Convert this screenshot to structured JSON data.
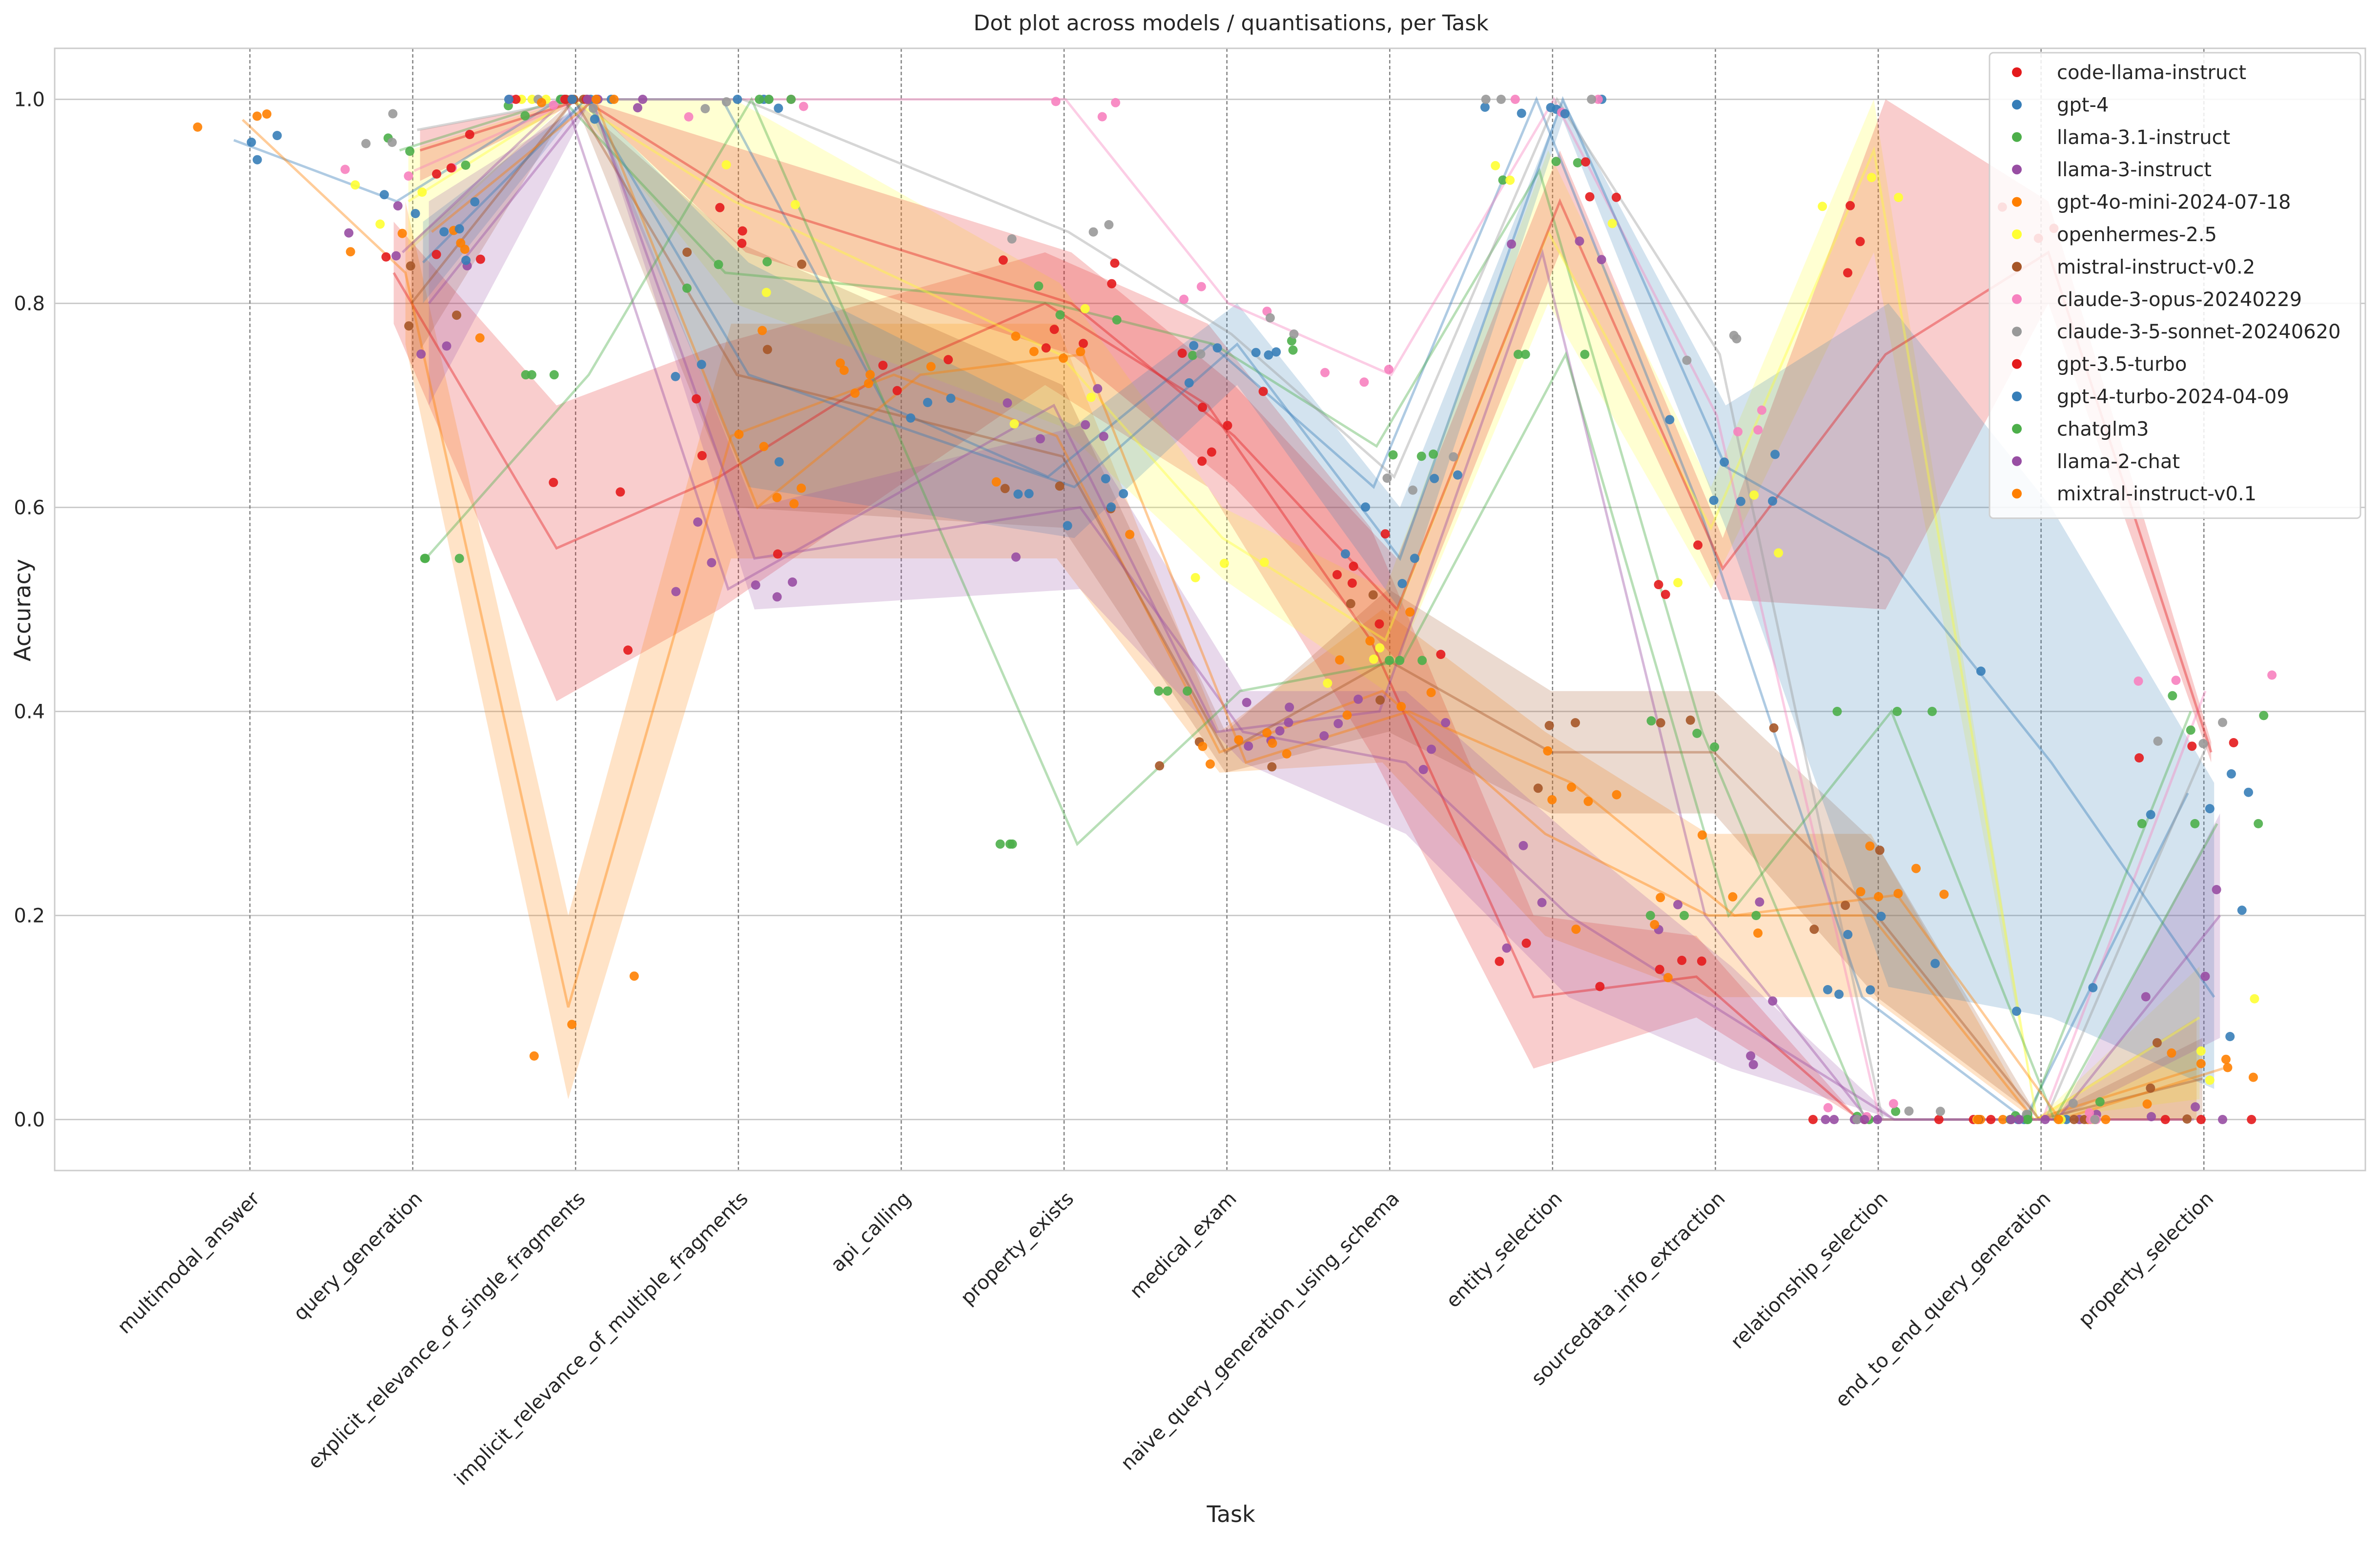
{
  "chart_data": {
    "type": "scatter",
    "title": "Dot plot across models / quantisations, per Task",
    "xlabel": "Task",
    "ylabel": "Accuracy",
    "ylim": [
      -0.05,
      1.05
    ],
    "yticks": [
      "0.0",
      "0.2",
      "0.4",
      "0.6",
      "0.8",
      "1.0"
    ],
    "grid": "y",
    "legend_position": "top-right",
    "categories": [
      "multimodal_answer",
      "query_generation",
      "explicit_relevance_of_single_fragments",
      "implicit_relevance_of_multiple_fragments",
      "api_calling",
      "property_exists",
      "medical_exam",
      "naive_query_generation_using_schema",
      "entity_selection",
      "sourcedata_info_extraction",
      "relationship_selection",
      "end_to_end_query_generation",
      "property_selection"
    ],
    "series": [
      {
        "name": "code-llama-instruct",
        "color": "#e41a1c",
        "mean": [
          null,
          0.83,
          0.56,
          0.63,
          0.73,
          0.8,
          0.7,
          0.47,
          0.12,
          0.14,
          0.0,
          0.0,
          0.0
        ],
        "lo": [
          null,
          0.78,
          0.41,
          0.5,
          null,
          0.72,
          0.62,
          0.36,
          0.05,
          0.1,
          0.0,
          0.0,
          0.0
        ],
        "hi": [
          null,
          0.88,
          0.7,
          0.76,
          null,
          0.85,
          0.78,
          0.58,
          0.2,
          0.18,
          0.0,
          0.0,
          0.0
        ]
      },
      {
        "name": "gpt-4",
        "color": "#377eb8",
        "mean": [
          0.96,
          0.9,
          1.0,
          1.0,
          0.7,
          0.63,
          0.76,
          0.62,
          1.0,
          0.6,
          0.12,
          0.0,
          0.32
        ],
        "lo": null,
        "hi": null
      },
      {
        "name": "llama-3.1-instruct",
        "color": "#4daf4a",
        "mean": [
          null,
          0.95,
          1.0,
          0.83,
          null,
          0.8,
          0.76,
          0.66,
          0.93,
          0.38,
          0.0,
          0.0,
          0.4
        ],
        "lo": null,
        "hi": null
      },
      {
        "name": "llama-3-instruct",
        "color": "#984ea3",
        "mean": [
          null,
          0.85,
          1.0,
          0.52,
          null,
          0.7,
          0.38,
          0.4,
          0.85,
          0.2,
          0.0,
          0.0,
          0.0
        ],
        "lo": null,
        "hi": null
      },
      {
        "name": "gpt-4o-mini-2024-07-18",
        "color": "#ff7f00",
        "mean": [
          0.98,
          0.83,
          0.11,
          0.67,
          0.73,
          0.67,
          0.36,
          0.42,
          0.28,
          0.2,
          0.2,
          0.0,
          0.05
        ],
        "lo": [
          null,
          0.76,
          0.02,
          0.55,
          null,
          0.55,
          0.34,
          0.35,
          0.18,
          0.12,
          0.12,
          0.0,
          0.0
        ],
        "hi": [
          null,
          0.9,
          0.2,
          0.78,
          null,
          0.78,
          0.38,
          0.5,
          0.38,
          0.28,
          0.28,
          0.0,
          0.1
        ]
      },
      {
        "name": "openhermes-2.5",
        "color": "#ffff33",
        "mean": [
          null,
          0.9,
          1.0,
          0.9,
          null,
          0.75,
          0.57,
          0.47,
          0.87,
          0.58,
          0.95,
          0.0,
          0.1
        ],
        "lo": [
          null,
          0.85,
          1.0,
          0.8,
          null,
          0.68,
          0.53,
          0.42,
          0.8,
          0.52,
          0.85,
          0.0,
          0.02
        ],
        "hi": [
          null,
          0.95,
          1.0,
          1.0,
          null,
          0.82,
          0.6,
          0.52,
          0.95,
          0.62,
          1.0,
          0.0,
          0.15
        ]
      },
      {
        "name": "mistral-instruct-v0.2",
        "color": "#a65628",
        "mean": [
          null,
          0.8,
          1.0,
          0.73,
          null,
          0.65,
          0.36,
          0.45,
          0.36,
          0.36,
          0.2,
          0.0,
          0.04
        ],
        "lo": [
          null,
          0.74,
          1.0,
          0.6,
          null,
          0.58,
          0.34,
          0.38,
          0.3,
          0.3,
          0.12,
          0.0,
          0.0
        ],
        "hi": [
          null,
          0.86,
          1.0,
          0.86,
          null,
          0.72,
          0.38,
          0.52,
          0.42,
          0.42,
          0.27,
          0.0,
          0.08
        ]
      },
      {
        "name": "claude-3-opus-20240229",
        "color": "#f781bf",
        "mean": [
          null,
          0.93,
          1.0,
          1.0,
          null,
          1.0,
          0.8,
          0.73,
          1.0,
          0.69,
          0.0,
          0.0,
          0.42
        ],
        "lo": null,
        "hi": null
      },
      {
        "name": "claude-3-5-sonnet-20240620",
        "color": "#999999",
        "mean": [
          null,
          0.97,
          1.0,
          1.0,
          null,
          0.87,
          0.77,
          0.63,
          1.0,
          0.75,
          0.0,
          0.0,
          0.37
        ],
        "lo": null,
        "hi": null
      },
      {
        "name": "gpt-3.5-turbo",
        "color": "#e41a1c",
        "mean": [
          null,
          0.95,
          1.0,
          0.9,
          null,
          0.8,
          0.67,
          0.5,
          0.9,
          0.54,
          0.75,
          0.85,
          0.36
        ],
        "lo": [
          null,
          0.92,
          1.0,
          0.85,
          null,
          0.75,
          0.62,
          0.45,
          0.85,
          0.51,
          0.5,
          0.8,
          0.35
        ],
        "hi": [
          null,
          0.97,
          1.0,
          0.95,
          null,
          0.85,
          0.72,
          0.55,
          0.95,
          0.57,
          1.0,
          0.9,
          0.37
        ]
      },
      {
        "name": "gpt-4-turbo-2024-04-09",
        "color": "#377eb8",
        "mean": [
          null,
          0.84,
          1.0,
          0.73,
          null,
          0.62,
          0.76,
          0.55,
          1.0,
          0.64,
          0.55,
          0.35,
          0.12
        ],
        "lo": [
          null,
          0.8,
          1.0,
          0.62,
          null,
          0.57,
          0.72,
          0.5,
          0.98,
          0.58,
          0.13,
          0.1,
          0.03
        ],
        "hi": [
          null,
          0.88,
          1.0,
          0.84,
          null,
          0.68,
          0.8,
          0.6,
          1.0,
          0.7,
          0.8,
          0.6,
          0.33
        ]
      },
      {
        "name": "chatglm3",
        "color": "#4daf4a",
        "mean": [
          null,
          0.55,
          0.73,
          1.0,
          null,
          0.27,
          0.42,
          0.45,
          0.75,
          0.2,
          0.4,
          0.0,
          0.29
        ],
        "lo": [
          null,
          0.55,
          0.73,
          1.0,
          null,
          0.27,
          0.42,
          0.45,
          0.75,
          0.2,
          0.4,
          0.0,
          0.29
        ],
        "hi": [
          null,
          0.55,
          0.73,
          1.0,
          null,
          0.27,
          0.42,
          0.45,
          0.75,
          0.2,
          0.4,
          0.0,
          0.29
        ]
      },
      {
        "name": "llama-2-chat",
        "color": "#984ea3",
        "mean": [
          null,
          0.8,
          1.0,
          0.55,
          null,
          0.6,
          0.38,
          0.35,
          0.2,
          0.1,
          0.0,
          0.0,
          0.2
        ],
        "lo": [
          null,
          0.7,
          1.0,
          0.5,
          null,
          0.52,
          0.35,
          0.28,
          0.12,
          0.05,
          0.0,
          0.0,
          0.08
        ],
        "hi": [
          null,
          0.9,
          1.0,
          0.6,
          null,
          0.68,
          0.42,
          0.42,
          0.28,
          0.15,
          0.0,
          0.0,
          0.3
        ]
      },
      {
        "name": "mixtral-instruct-v0.1",
        "color": "#ff7f00",
        "mean": [
          null,
          0.87,
          1.0,
          0.6,
          0.73,
          0.75,
          0.35,
          0.4,
          0.33,
          0.2,
          0.22,
          0.0,
          0.05
        ],
        "lo": null,
        "hi": null
      }
    ]
  }
}
